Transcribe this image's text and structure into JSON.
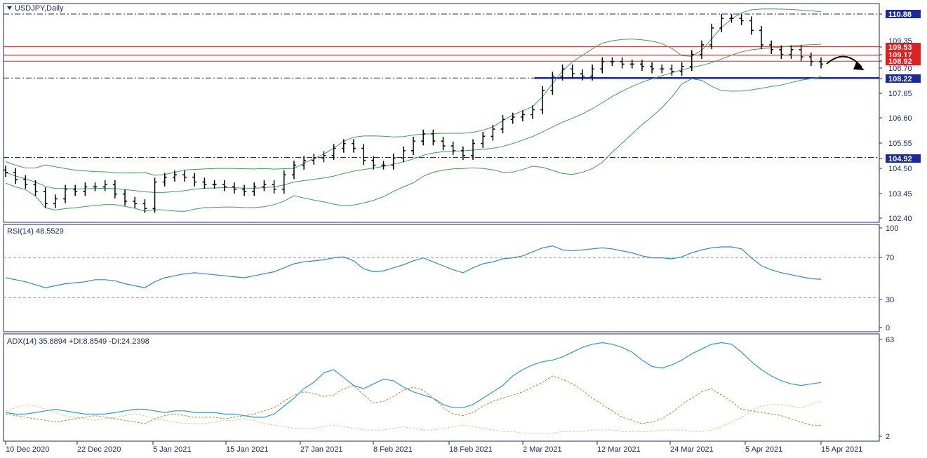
{
  "window": {
    "symbol_title": "USDJPY,Daily"
  },
  "colors": {
    "axis": "#1a2a6c",
    "bar": "#000000",
    "bollinger": "#3aa05a",
    "resistance": "#e02020",
    "support": "#1a2a9c",
    "rsi": "#2a8ad4",
    "adx": "#2a9ad4",
    "plus_di": "#9a9a30",
    "minus_di": "#e8c890"
  },
  "chart_data": [
    {
      "type": "ohlc",
      "title": "USDJPY,Daily",
      "ylim": [
        102.4,
        110.88
      ],
      "yticks": [
        "110.88",
        "109.53",
        "109.17",
        "108.92",
        "108.70",
        "108.22",
        "107.65",
        "106.60",
        "105.55",
        "104.92",
        "104.50",
        "103.45",
        "102.40"
      ],
      "partial_tick": "109.35",
      "levels": {
        "resistance": [
          109.53,
          109.17,
          108.92
        ],
        "support_dashed": [
          110.88,
          108.22,
          104.92
        ],
        "support_solid": 108.22
      },
      "close": [
        104.3,
        104.0,
        103.8,
        103.5,
        103.0,
        103.2,
        103.6,
        103.5,
        103.7,
        103.7,
        103.8,
        103.4,
        103.1,
        103.0,
        102.8,
        103.9,
        104.1,
        104.2,
        104.1,
        103.9,
        103.8,
        103.8,
        103.7,
        103.6,
        103.5,
        103.7,
        103.8,
        103.6,
        104.2,
        104.6,
        104.8,
        104.9,
        105.0,
        105.3,
        105.5,
        105.3,
        104.8,
        104.6,
        104.6,
        104.9,
        105.2,
        105.6,
        105.9,
        105.6,
        105.4,
        105.2,
        105.0,
        105.5,
        105.8,
        106.1,
        106.5,
        106.6,
        106.7,
        106.9,
        107.7,
        108.3,
        108.6,
        108.4,
        108.3,
        108.6,
        108.9,
        108.9,
        108.8,
        108.8,
        108.7,
        108.6,
        108.6,
        108.5,
        108.7,
        109.2,
        109.6,
        110.3,
        110.7,
        110.7,
        110.6,
        110.2,
        109.6,
        109.4,
        109.2,
        109.4,
        109.1,
        108.9,
        108.8
      ],
      "x_labels": [
        "10 Dec 2020",
        "22 Dec 2020",
        "5 Jan 2021",
        "15 Jan 2021",
        "27 Jan 2021",
        "8 Feb 2021",
        "18 Feb 2021",
        "2 Mar 2021",
        "12 Mar 2021",
        "24 Mar 2021",
        "5 Apr 2021",
        "15 Apr 2021"
      ]
    },
    {
      "type": "line",
      "title": "RSI(14) 48.5529",
      "ylim": [
        0,
        100
      ],
      "yticks": [
        "100",
        "70",
        "30",
        "0"
      ],
      "levels": [
        70,
        30
      ],
      "values": [
        50,
        48,
        46,
        43,
        40,
        42,
        44,
        45,
        46,
        48,
        48,
        47,
        44,
        42,
        40,
        46,
        50,
        52,
        54,
        55,
        54,
        53,
        52,
        51,
        50,
        52,
        54,
        56,
        60,
        64,
        66,
        67,
        68,
        70,
        71,
        67,
        59,
        56,
        57,
        60,
        63,
        67,
        70,
        66,
        62,
        58,
        55,
        60,
        64,
        66,
        69,
        70,
        72,
        76,
        80,
        82,
        78,
        77,
        78,
        79,
        80,
        79,
        77,
        75,
        72,
        70,
        70,
        69,
        71,
        75,
        78,
        80,
        81,
        81,
        79,
        70,
        62,
        58,
        55,
        53,
        51,
        49,
        48.55
      ]
    },
    {
      "type": "line",
      "title": "ADX(14) 35.8894 +DI:8.8549 -DI:24.2398",
      "ylim": [
        2,
        63
      ],
      "yticks": [
        "63",
        "2"
      ],
      "series": [
        {
          "name": "ADX",
          "values": [
            17,
            16,
            16,
            17,
            18,
            19,
            18,
            17,
            16,
            16,
            16,
            17,
            18,
            19,
            19,
            18,
            17,
            18,
            18,
            17,
            17,
            17,
            16,
            16,
            15,
            14,
            14,
            16,
            21,
            26,
            32,
            36,
            42,
            44,
            39,
            34,
            32,
            35,
            38,
            37,
            33,
            30,
            28,
            26,
            22,
            20,
            20,
            22,
            26,
            30,
            34,
            40,
            44,
            47,
            49,
            50,
            52,
            55,
            58,
            60,
            61,
            60,
            58,
            55,
            50,
            46,
            45,
            47,
            50,
            54,
            57,
            60,
            61,
            60,
            55,
            49,
            44,
            40,
            37,
            35,
            34,
            35,
            35.89
          ]
        },
        {
          "name": "+DI",
          "values": [
            16,
            15,
            14,
            13,
            12,
            11,
            12,
            13,
            14,
            15,
            14,
            13,
            12,
            11,
            10,
            13,
            15,
            16,
            15,
            14,
            14,
            14,
            13,
            14,
            15,
            16,
            18,
            20,
            24,
            28,
            30,
            29,
            27,
            28,
            32,
            34,
            28,
            23,
            24,
            27,
            31,
            33,
            31,
            26,
            20,
            16,
            15,
            17,
            21,
            24,
            26,
            28,
            30,
            33,
            36,
            40,
            38,
            35,
            31,
            26,
            22,
            18,
            14,
            12,
            10,
            11,
            13,
            17,
            22,
            26,
            30,
            32,
            28,
            24,
            19,
            18,
            17,
            16,
            15,
            13,
            11,
            9,
            8.85
          ]
        },
        {
          "name": "-DI",
          "values": [
            18,
            20,
            22,
            21,
            19,
            17,
            15,
            14,
            13,
            12,
            13,
            14,
            15,
            16,
            15,
            13,
            12,
            11,
            10,
            10,
            10,
            11,
            12,
            12,
            13,
            12,
            10,
            9,
            8,
            7,
            7,
            7,
            8,
            9,
            8,
            7,
            6,
            6,
            6,
            7,
            8,
            7,
            6,
            6,
            7,
            8,
            9,
            8,
            7,
            6,
            5,
            5,
            4,
            4,
            4,
            4,
            5,
            5,
            5,
            6,
            6,
            6,
            5,
            5,
            5,
            5,
            6,
            6,
            6,
            5,
            5,
            6,
            8,
            11,
            14,
            18,
            21,
            22,
            22,
            21,
            20,
            22,
            24.24
          ]
        }
      ]
    }
  ]
}
